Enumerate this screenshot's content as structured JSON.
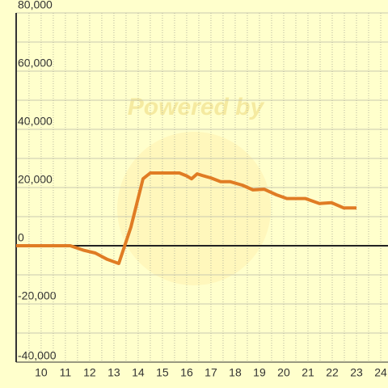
{
  "chart_data": {
    "type": "line",
    "watermark": "Powered by",
    "series": [
      {
        "color": "#e07c24",
        "x": [
          8.97,
          11.2,
          11.73,
          12.23,
          12.73,
          13.2,
          13.7,
          14.2,
          14.5,
          15.7,
          16.0,
          16.2,
          16.43,
          16.7,
          17.0,
          17.4,
          17.8,
          18.3,
          18.73,
          19.2,
          19.7,
          20.13,
          20.9,
          21.47,
          21.97,
          22.47,
          23.0
        ],
        "values": [
          0,
          0,
          -1500,
          -2500,
          -4700,
          -6100,
          6400,
          23000,
          25000,
          25000,
          24000,
          23000,
          24700,
          24000,
          23300,
          22000,
          22000,
          20800,
          19200,
          19400,
          17500,
          16200,
          16200,
          14500,
          14800,
          13000,
          13000
        ]
      }
    ],
    "xlim": [
      8.97,
      24.3
    ],
    "xticks": [
      10,
      11,
      12,
      13,
      14,
      15,
      16,
      17,
      18,
      19,
      20,
      21,
      22,
      23,
      24
    ],
    "ylim": [
      -40000,
      80000
    ],
    "yticks": [
      {
        "value": -40000,
        "label": "-40,000"
      },
      {
        "value": -20000,
        "label": "-20,000"
      },
      0,
      {
        "value": 20000,
        "label": "20,000"
      },
      {
        "value": 40000,
        "label": "40,000"
      },
      {
        "value": 60000,
        "label": "60,000"
      },
      {
        "value": 80000,
        "label": "80,000"
      }
    ],
    "grid": true
  }
}
